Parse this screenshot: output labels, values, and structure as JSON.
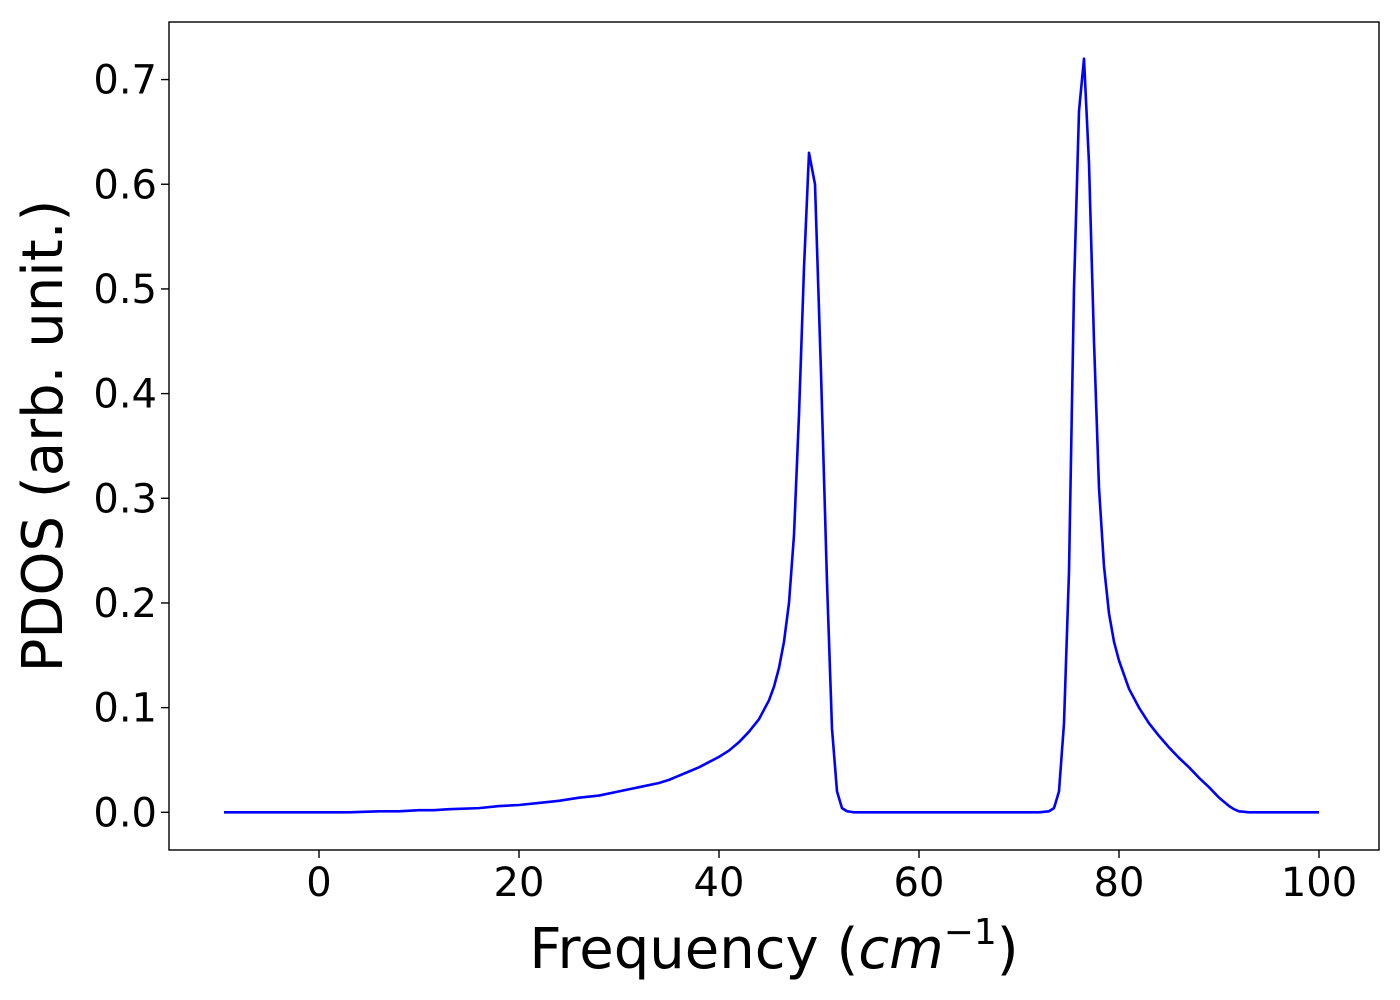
{
  "chart_data": {
    "type": "line",
    "title": "",
    "xlabel": "Frequency (",
    "xlabel_math": "cm",
    "xlabel_sup": "−1",
    "xlabel_close": ")",
    "ylabel": "PDOS (arb. unit.)",
    "xlim": [
      -15,
      106
    ],
    "ylim": [
      -0.036,
      0.755
    ],
    "xticks": [
      0,
      20,
      40,
      60,
      80,
      100
    ],
    "xtick_labels": [
      "0",
      "20",
      "40",
      "60",
      "80",
      "100"
    ],
    "yticks": [
      0.0,
      0.1,
      0.2,
      0.3,
      0.4,
      0.5,
      0.6,
      0.7
    ],
    "ytick_labels": [
      "0.0",
      "0.1",
      "0.2",
      "0.3",
      "0.4",
      "0.5",
      "0.6",
      "0.7"
    ],
    "grid": false,
    "series": [
      {
        "color": "#0000ff",
        "x": [
          -9.5,
          -5,
          0,
          3,
          6,
          8,
          10,
          11.5,
          13,
          16,
          18,
          20,
          22,
          24,
          26,
          28,
          30,
          32,
          34,
          35,
          36,
          37,
          38,
          39,
          40,
          41,
          42,
          43,
          44,
          45,
          45.5,
          46,
          46.5,
          47,
          47.5,
          48,
          48.5,
          49,
          49.6,
          50.2,
          50.8,
          51.3,
          51.8,
          52.3,
          52.8,
          53.5,
          55,
          60,
          65,
          70,
          72,
          73,
          73.5,
          74,
          74.5,
          75,
          75.5,
          76,
          76.5,
          77,
          77.5,
          78,
          78.5,
          79,
          79.5,
          80,
          81,
          82,
          83,
          84,
          85,
          86,
          87,
          88,
          89,
          90,
          91,
          91.5,
          92,
          93,
          95,
          100
        ],
        "y": [
          0,
          0,
          0,
          0,
          0.001,
          0.001,
          0.002,
          0.002,
          0.003,
          0.004,
          0.006,
          0.007,
          0.009,
          0.011,
          0.014,
          0.016,
          0.02,
          0.024,
          0.028,
          0.031,
          0.035,
          0.039,
          0.043,
          0.048,
          0.053,
          0.059,
          0.067,
          0.077,
          0.089,
          0.107,
          0.12,
          0.138,
          0.163,
          0.2,
          0.265,
          0.38,
          0.52,
          0.63,
          0.6,
          0.42,
          0.22,
          0.08,
          0.02,
          0.004,
          0.001,
          0,
          0,
          0,
          0,
          0,
          0,
          0.001,
          0.004,
          0.02,
          0.085,
          0.23,
          0.5,
          0.67,
          0.72,
          0.62,
          0.45,
          0.31,
          0.235,
          0.19,
          0.163,
          0.145,
          0.118,
          0.1,
          0.085,
          0.073,
          0.062,
          0.052,
          0.043,
          0.033,
          0.024,
          0.014,
          0.006,
          0.003,
          0.001,
          0,
          0,
          0
        ]
      }
    ]
  }
}
